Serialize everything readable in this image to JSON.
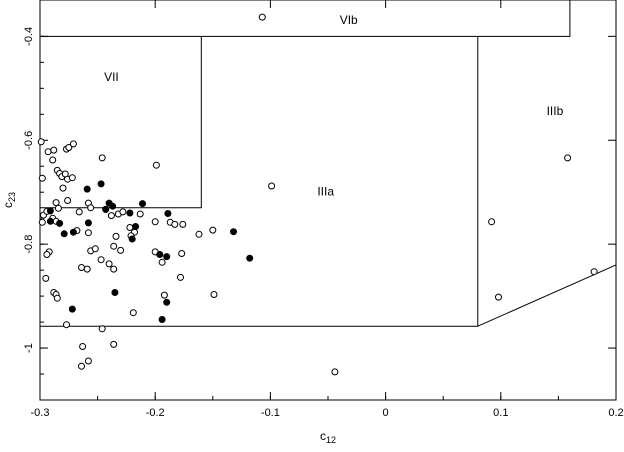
{
  "chart_data": {
    "type": "scatter",
    "title": "",
    "xlabel": "c",
    "xlabel_sub": "12",
    "ylabel": "c",
    "ylabel_sub": "23",
    "xlim": [
      -0.3,
      0.2
    ],
    "ylim": [
      -1.1,
      -0.33
    ],
    "grid": false,
    "x_ticks": [
      -0.3,
      -0.2,
      -0.1,
      0,
      0.1,
      0.2
    ],
    "x_tick_labels": [
      "-0.3",
      "-0.2",
      "-0.1",
      "0",
      "0.1",
      "0.2"
    ],
    "y_ticks": [
      -1.0,
      -0.8,
      -0.6,
      -0.4
    ],
    "y_tick_labels": [
      "-1",
      "-0.8",
      "-0.6",
      "-0.4"
    ],
    "regions": [
      {
        "label": "VIb",
        "label_at": [
          -0.032,
          -0.37
        ],
        "boundary": [
          [
            -0.3,
            -0.4
          ],
          [
            0.16,
            -0.4
          ],
          [
            0.16,
            -0.33
          ]
        ]
      },
      {
        "label": "VII",
        "label_at": [
          -0.238,
          -0.48
        ],
        "boundary": [
          [
            -0.3,
            -0.73
          ],
          [
            -0.16,
            -0.73
          ],
          [
            -0.16,
            -0.4
          ]
        ]
      },
      {
        "label": "IIIa",
        "label_at": [
          -0.052,
          -0.7
        ],
        "boundary": [
          [
            -0.3,
            -0.958
          ],
          [
            0.08,
            -0.958
          ],
          [
            0.08,
            -0.4
          ]
        ]
      },
      {
        "label": "IIIb",
        "label_at": [
          0.147,
          -0.545
        ],
        "boundary": [
          [
            0.08,
            -0.958
          ],
          [
            0.2,
            -0.84
          ]
        ]
      }
    ],
    "series": [
      {
        "marker": "open-circle",
        "points": [
          [
            -0.107,
            -0.363
          ],
          [
            -0.299,
            -0.603
          ],
          [
            -0.293,
            -0.622
          ],
          [
            -0.288,
            -0.619
          ],
          [
            -0.277,
            -0.617
          ],
          [
            -0.275,
            -0.614
          ],
          [
            -0.271,
            -0.607
          ],
          [
            -0.246,
            -0.634
          ],
          [
            -0.289,
            -0.638
          ],
          [
            -0.298,
            -0.673
          ],
          [
            -0.285,
            -0.658
          ],
          [
            -0.283,
            -0.664
          ],
          [
            -0.281,
            -0.67
          ],
          [
            -0.278,
            -0.665
          ],
          [
            -0.276,
            -0.675
          ],
          [
            -0.272,
            -0.672
          ],
          [
            -0.28,
            -0.692
          ],
          [
            -0.286,
            -0.72
          ],
          [
            -0.284,
            -0.731
          ],
          [
            -0.276,
            -0.716
          ],
          [
            -0.258,
            -0.721
          ],
          [
            -0.256,
            -0.73
          ],
          [
            -0.243,
            -0.733
          ],
          [
            -0.238,
            -0.745
          ],
          [
            -0.232,
            -0.742
          ],
          [
            -0.228,
            -0.738
          ],
          [
            -0.213,
            -0.742
          ],
          [
            -0.266,
            -0.738
          ],
          [
            -0.297,
            -0.744
          ],
          [
            -0.294,
            -0.737
          ],
          [
            -0.289,
            -0.75
          ],
          [
            -0.286,
            -0.756
          ],
          [
            -0.298,
            -0.758
          ],
          [
            -0.268,
            -0.774
          ],
          [
            -0.222,
            -0.768
          ],
          [
            -0.218,
            -0.777
          ],
          [
            -0.2,
            -0.757
          ],
          [
            -0.187,
            -0.758
          ],
          [
            -0.183,
            -0.762
          ],
          [
            -0.176,
            -0.762
          ],
          [
            -0.162,
            -0.781
          ],
          [
            -0.15,
            -0.773
          ],
          [
            -0.258,
            -0.778
          ],
          [
            -0.234,
            -0.785
          ],
          [
            -0.221,
            -0.784
          ],
          [
            -0.256,
            -0.813
          ],
          [
            -0.252,
            -0.809
          ],
          [
            -0.236,
            -0.804
          ],
          [
            -0.292,
            -0.815
          ],
          [
            -0.294,
            -0.82
          ],
          [
            -0.23,
            -0.812
          ],
          [
            -0.2,
            -0.815
          ],
          [
            -0.177,
            -0.818
          ],
          [
            -0.194,
            -0.835
          ],
          [
            -0.247,
            -0.83
          ],
          [
            -0.24,
            -0.838
          ],
          [
            -0.264,
            -0.845
          ],
          [
            -0.259,
            -0.848
          ],
          [
            -0.236,
            -0.848
          ],
          [
            -0.295,
            -0.866
          ],
          [
            -0.178,
            -0.864
          ],
          [
            -0.288,
            -0.893
          ],
          [
            -0.286,
            -0.897
          ],
          [
            -0.285,
            -0.904
          ],
          [
            -0.192,
            -0.898
          ],
          [
            -0.149,
            -0.897
          ],
          [
            -0.219,
            -0.932
          ],
          [
            -0.277,
            -0.955
          ],
          [
            -0.246,
            -0.963
          ],
          [
            -0.263,
            -0.997
          ],
          [
            -0.236,
            -0.993
          ],
          [
            -0.258,
            -1.025
          ],
          [
            -0.264,
            -1.035
          ],
          [
            -0.044,
            -1.046
          ],
          [
            -0.099,
            -0.688
          ],
          [
            -0.199,
            -0.648
          ],
          [
            0.092,
            -0.757
          ],
          [
            0.098,
            -0.902
          ],
          [
            0.158,
            -0.634
          ],
          [
            0.181,
            -0.853
          ]
        ]
      },
      {
        "marker": "filled-circle",
        "points": [
          [
            -0.291,
            -0.736
          ],
          [
            -0.291,
            -0.756
          ],
          [
            -0.283,
            -0.76
          ],
          [
            -0.259,
            -0.694
          ],
          [
            -0.247,
            -0.684
          ],
          [
            -0.24,
            -0.721
          ],
          [
            -0.243,
            -0.733
          ],
          [
            -0.237,
            -0.727
          ],
          [
            -0.217,
            -0.766
          ],
          [
            -0.22,
            -0.79
          ],
          [
            -0.211,
            -0.722
          ],
          [
            -0.196,
            -0.82
          ],
          [
            -0.189,
            -0.741
          ],
          [
            -0.19,
            -0.824
          ],
          [
            -0.132,
            -0.776
          ],
          [
            -0.118,
            -0.827
          ],
          [
            -0.258,
            -0.759
          ],
          [
            -0.235,
            -0.893
          ],
          [
            -0.279,
            -0.78
          ],
          [
            -0.271,
            -0.777
          ],
          [
            -0.272,
            -0.925
          ],
          [
            -0.19,
            -0.912
          ],
          [
            -0.194,
            -0.945
          ],
          [
            -0.222,
            -0.74
          ]
        ]
      }
    ]
  }
}
